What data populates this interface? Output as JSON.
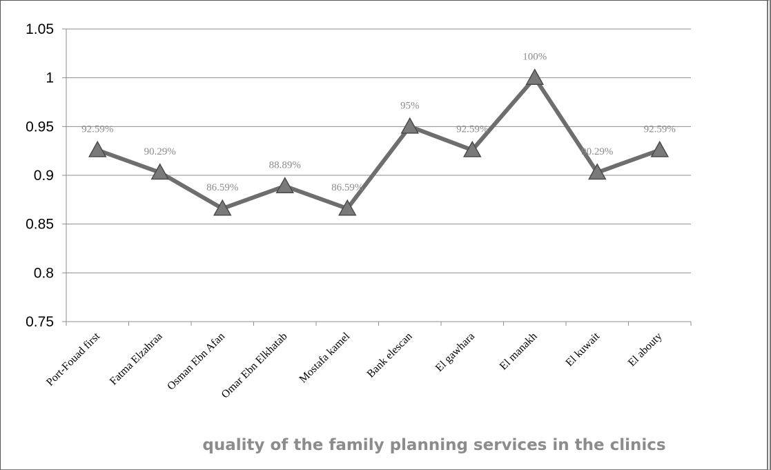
{
  "chart_data": {
    "type": "line",
    "title": "quality of the family planning services in the clinics",
    "xlabel": "",
    "ylabel": "",
    "categories": [
      "Port-Fouad first",
      "Fatma Elzahraa",
      "Osman Ebn Afan",
      "Omar Ebn Elkhatab",
      "Mostafa kamel",
      "Bank elescan",
      "El gawhara",
      "El manakh",
      "El kuwait",
      "El abouty"
    ],
    "values": [
      0.9259,
      0.9029,
      0.8659,
      0.8889,
      0.8659,
      0.95,
      0.9259,
      1.0,
      0.9029,
      0.9259
    ],
    "data_labels": [
      "92.59%",
      "90.29%",
      "86.59%",
      "88.89%",
      "86.59%",
      "95%",
      "92.59%",
      "100%",
      "90.29%",
      "92.59%"
    ],
    "yticks": [
      "0.75",
      "0.8",
      "0.85",
      "0.9",
      "0.95",
      "1",
      "1.05"
    ],
    "ylim": [
      0.75,
      1.05
    ],
    "grid": true,
    "marker": "triangle",
    "line_color": "#6e6e6e",
    "marker_color": "#7a7a7a"
  }
}
